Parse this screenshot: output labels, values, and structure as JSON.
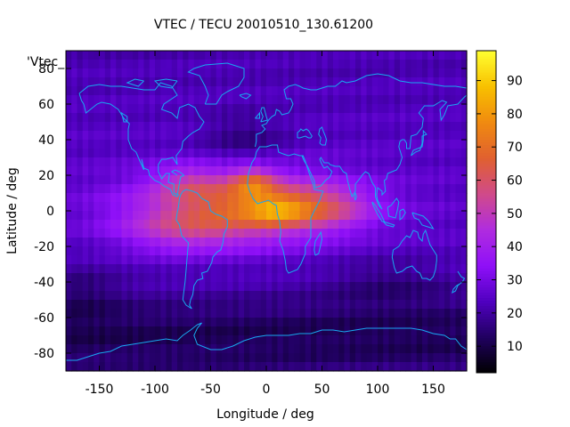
{
  "chart_data": {
    "type": "heatmap",
    "title": "VTEC / TECU 20010510_130.61200",
    "xlabel": "Longitude / deg",
    "ylabel": "Latitude / deg",
    "key_label": "'Vtec_",
    "xlim": [
      -180,
      180
    ],
    "ylim": [
      -90,
      90
    ],
    "xticks": [
      -150,
      -100,
      -50,
      0,
      50,
      100,
      150
    ],
    "yticks": [
      -80,
      -60,
      -40,
      -20,
      0,
      20,
      40,
      60,
      80
    ],
    "colorbar": {
      "range": [
        2,
        99
      ],
      "ticks": [
        10,
        20,
        30,
        40,
        50,
        60,
        70,
        80,
        90
      ]
    },
    "grid": {
      "lon_step": 5,
      "lat_step": 5
    },
    "peak_value": 98,
    "overlay": "coastlines",
    "colormap": [
      "#000000",
      "#200060",
      "#5000c0",
      "#8f10f8",
      "#b02cdf",
      "#d04a8a",
      "#e06030",
      "#f08a10",
      "#f8c000",
      "#ffff30"
    ]
  }
}
